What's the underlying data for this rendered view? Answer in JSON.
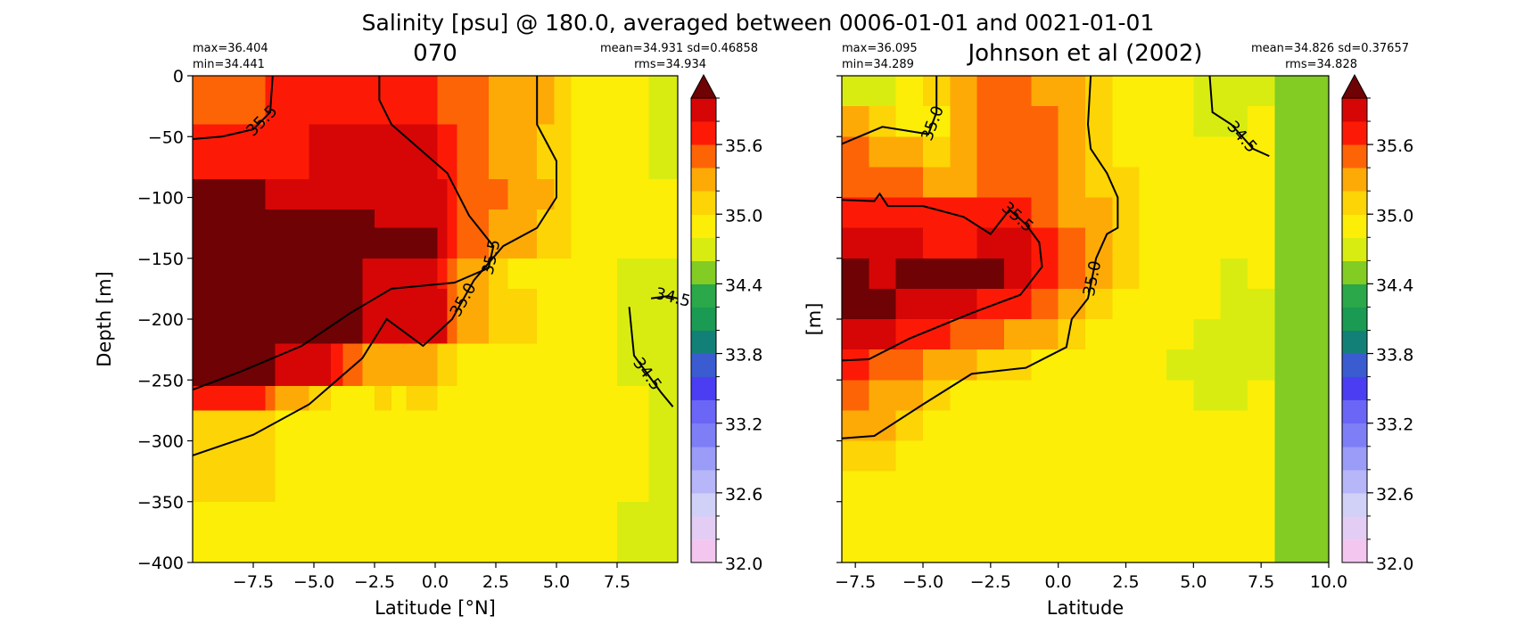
{
  "figure": {
    "suptitle": "Salinity [psu] @ 180.0, averaged between 0006-01-01 and 0021-01-01"
  },
  "colorbar": {
    "levels": [
      32.0,
      32.2,
      32.4,
      32.6,
      32.8,
      33.0,
      33.2,
      33.4,
      33.6,
      33.8,
      34.0,
      34.2,
      34.4,
      34.6,
      34.8,
      35.0,
      35.2,
      35.4,
      35.6,
      35.8,
      36.0
    ],
    "colors": [
      "#f3c6f0",
      "#e4cdf5",
      "#d1d1f8",
      "#b6b6f8",
      "#9b9bf8",
      "#7e7ef6",
      "#6b66f6",
      "#4b3ef2",
      "#3b5bd0",
      "#138078",
      "#1a9a52",
      "#2aa84a",
      "#82cc24",
      "#d9ec12",
      "#fcee06",
      "#fdd405",
      "#fdaa06",
      "#fd6406",
      "#fc1a06",
      "#d60606",
      "#a40406"
    ],
    "extend_color": "#6e0204",
    "tick_labels": [
      "32.0",
      "32.6",
      "33.2",
      "33.8",
      "34.4",
      "35.0",
      "35.6"
    ],
    "tick_values": [
      32.0,
      32.6,
      33.2,
      33.8,
      34.4,
      35.0,
      35.6
    ]
  },
  "chart_data": [
    {
      "type": "heatmap",
      "title": "070",
      "xlabel": "Latitude [°N]",
      "ylabel": "Depth [m]",
      "stats_left": [
        "max=36.404",
        "min=34.441"
      ],
      "stats_right": [
        "mean=34.931 sd=0.46858",
        "rms=34.934"
      ],
      "xlim": [
        -10,
        10
      ],
      "ylim": [
        -400,
        0
      ],
      "x_tick_values": [
        -7.5,
        -5.0,
        -2.5,
        0.0,
        2.5,
        5.0,
        7.5
      ],
      "x_tick_labels": [
        "−7.5",
        "−5.0",
        "−2.5",
        "0.0",
        "2.5",
        "5.0",
        "7.5"
      ],
      "y_tick_values": [
        0,
        -50,
        -100,
        -150,
        -200,
        -250,
        -300,
        -350,
        -400
      ],
      "y_tick_labels": [
        "0",
        "−50",
        "−100",
        "−150",
        "−200",
        "−250",
        "−300",
        "−350",
        "−400"
      ],
      "x_edges": [
        -10,
        -8.4,
        -7.0,
        -6.6,
        -5.2,
        -4.3,
        -3.8,
        -3.0,
        -2.5,
        -1.8,
        -1.2,
        -0.5,
        0.1,
        0.5,
        0.9,
        1.2,
        2.2,
        3.0,
        4.2,
        4.9,
        5.6,
        7.5,
        8.8,
        10
      ],
      "y_edges": [
        0,
        -40,
        -85,
        -110,
        -125,
        -150,
        -175,
        -220,
        -255,
        -275,
        -350,
        -400
      ],
      "values": [
        [
          35.5,
          35.5,
          35.7,
          35.7,
          35.7,
          35.7,
          35.7,
          35.7,
          35.7,
          35.7,
          35.7,
          35.7,
          35.5,
          35.5,
          35.5,
          35.5,
          35.3,
          35.3,
          35.3,
          35.1,
          34.9,
          34.9,
          34.7
        ],
        [
          35.7,
          35.7,
          35.7,
          35.7,
          35.9,
          35.9,
          35.9,
          35.9,
          35.9,
          35.9,
          35.9,
          35.9,
          35.7,
          35.7,
          35.5,
          35.5,
          35.3,
          35.3,
          35.1,
          35.1,
          34.9,
          34.9,
          34.7
        ],
        [
          36.1,
          36.1,
          35.9,
          35.9,
          35.9,
          35.9,
          35.9,
          35.9,
          35.9,
          35.9,
          35.9,
          35.9,
          35.9,
          35.7,
          35.5,
          35.5,
          35.5,
          35.3,
          35.3,
          35.1,
          34.9,
          34.9,
          34.9
        ],
        [
          36.1,
          36.1,
          36.1,
          36.1,
          36.1,
          36.1,
          36.1,
          36.1,
          35.9,
          35.9,
          35.9,
          35.9,
          35.9,
          35.7,
          35.5,
          35.5,
          35.3,
          35.3,
          35.1,
          35.1,
          34.9,
          34.9,
          34.9
        ],
        [
          36.1,
          36.1,
          36.1,
          36.1,
          36.1,
          36.1,
          36.1,
          36.1,
          36.1,
          36.1,
          36.1,
          36.1,
          35.9,
          35.7,
          35.5,
          35.5,
          35.3,
          35.3,
          35.1,
          35.1,
          34.9,
          34.9,
          34.9
        ],
        [
          36.1,
          36.1,
          36.1,
          36.1,
          36.1,
          36.1,
          36.1,
          35.9,
          35.9,
          35.9,
          35.9,
          35.9,
          35.7,
          35.5,
          35.3,
          35.3,
          35.1,
          34.9,
          34.9,
          34.9,
          34.9,
          34.7,
          34.7
        ],
        [
          36.1,
          36.1,
          36.1,
          36.1,
          36.1,
          36.1,
          36.1,
          35.9,
          35.9,
          35.9,
          35.9,
          35.9,
          35.9,
          35.5,
          35.3,
          35.3,
          35.1,
          35.1,
          34.9,
          34.9,
          34.9,
          34.7,
          34.7
        ],
        [
          36.1,
          36.1,
          36.1,
          35.9,
          35.9,
          35.7,
          35.5,
          35.3,
          35.3,
          35.3,
          35.3,
          35.3,
          35.1,
          35.1,
          34.9,
          34.9,
          34.9,
          34.9,
          34.9,
          34.9,
          34.9,
          34.7,
          34.7
        ],
        [
          35.7,
          35.7,
          35.5,
          35.3,
          35.1,
          34.9,
          34.9,
          34.9,
          35.1,
          34.9,
          35.1,
          35.1,
          34.9,
          34.9,
          34.9,
          34.9,
          34.9,
          34.9,
          34.9,
          34.9,
          34.9,
          34.9,
          34.7
        ],
        [
          35.1,
          35.1,
          35.1,
          34.9,
          34.9,
          34.9,
          34.9,
          34.9,
          34.9,
          34.9,
          34.9,
          34.9,
          34.9,
          34.9,
          34.9,
          34.9,
          34.9,
          34.9,
          34.9,
          34.9,
          34.9,
          34.9,
          34.7
        ],
        [
          34.9,
          34.9,
          34.9,
          34.9,
          34.9,
          34.9,
          34.9,
          34.9,
          34.9,
          34.9,
          34.9,
          34.9,
          34.9,
          34.9,
          34.9,
          34.9,
          34.9,
          34.9,
          34.9,
          34.9,
          34.9,
          34.7,
          34.7
        ]
      ],
      "contours": [
        {
          "label": "35.5",
          "points": [
            [
              -10,
              -52
            ],
            [
              -8.8,
              -50
            ],
            [
              -7.5,
              -44
            ],
            [
              -6.8,
              -30
            ],
            [
              -6.7,
              0
            ]
          ]
        },
        {
          "label": "35.5",
          "points": [
            [
              -10,
              -258
            ],
            [
              -8,
              -243
            ],
            [
              -5.5,
              -222
            ],
            [
              -3.5,
              -195
            ],
            [
              -1.8,
              -175
            ],
            [
              0.8,
              -170
            ],
            [
              2.2,
              -158
            ],
            [
              2.4,
              -140
            ],
            [
              1.4,
              -115
            ],
            [
              0.5,
              -80
            ],
            [
              -1.8,
              -40
            ],
            [
              -2.3,
              -20
            ],
            [
              -2.3,
              0
            ]
          ]
        },
        {
          "label": "35.0",
          "points": [
            [
              -10,
              -312
            ],
            [
              -7.5,
              -295
            ],
            [
              -5.2,
              -270
            ],
            [
              -3,
              -232
            ],
            [
              -2,
              -200
            ],
            [
              -0.5,
              -222
            ],
            [
              0.7,
              -200
            ],
            [
              1.6,
              -168
            ],
            [
              2.8,
              -140
            ],
            [
              4.2,
              -125
            ],
            [
              5.0,
              -100
            ],
            [
              5.0,
              -70
            ],
            [
              4.2,
              -40
            ],
            [
              4.2,
              0
            ]
          ]
        },
        {
          "label": "34.5",
          "points": [
            [
              8.9,
              -183
            ],
            [
              9.6,
              -181
            ],
            [
              10,
              -183
            ]
          ]
        },
        {
          "label": "34.5",
          "points": [
            [
              8.0,
              -190
            ],
            [
              8.2,
              -230
            ],
            [
              9.3,
              -260
            ],
            [
              9.8,
              -272
            ]
          ]
        }
      ]
    },
    {
      "type": "heatmap",
      "title": "Johnson et al (2002)",
      "xlabel": "Latitude",
      "ylabel": "[m]",
      "stats_left": [
        "max=36.095",
        "min=34.289"
      ],
      "stats_right": [
        "mean=34.826 sd=0.37657",
        "rms=34.828"
      ],
      "xlim": [
        -8.0,
        10.0
      ],
      "ylim": [
        -400,
        0
      ],
      "x_tick_values": [
        -7.5,
        -5.0,
        -2.5,
        0.0,
        2.5,
        5.0,
        7.5,
        10.0
      ],
      "x_tick_labels": [
        "−7.5",
        "−5.0",
        "−2.5",
        "0.0",
        "2.5",
        "5.0",
        "7.5",
        "10.0"
      ],
      "y_tick_values": [
        0,
        -50,
        -100,
        -150,
        -200,
        -250,
        -300,
        -350,
        -400
      ],
      "y_tick_labels": [
        "",
        "",
        "",
        "",
        "",
        "",
        "",
        "",
        ""
      ],
      "x_edges": [
        -8.0,
        -7.0,
        -6.0,
        -5.0,
        -4.0,
        -3.0,
        -2.0,
        -1.0,
        0.0,
        1.0,
        2.0,
        3.0,
        4.0,
        5.0,
        6.0,
        7.0,
        8.0,
        10.0
      ],
      "y_edges": [
        0,
        -25,
        -50,
        -75,
        -100,
        -125,
        -150,
        -175,
        -200,
        -225,
        -250,
        -275,
        -300,
        -325,
        -350,
        -375,
        -400
      ],
      "values": [
        [
          34.7,
          34.7,
          34.9,
          35.1,
          35.3,
          35.5,
          35.5,
          35.3,
          35.3,
          35.1,
          34.9,
          34.9,
          34.9,
          34.7,
          34.7,
          34.7,
          34.5
        ],
        [
          35.3,
          35.1,
          34.9,
          34.9,
          35.3,
          35.5,
          35.5,
          35.5,
          35.3,
          35.1,
          34.9,
          34.9,
          34.9,
          34.7,
          34.7,
          34.9,
          34.5
        ],
        [
          35.5,
          35.3,
          35.3,
          35.1,
          35.3,
          35.5,
          35.5,
          35.5,
          35.3,
          35.1,
          34.9,
          34.9,
          34.9,
          34.9,
          34.9,
          34.9,
          34.5
        ],
        [
          35.5,
          35.5,
          35.5,
          35.3,
          35.3,
          35.5,
          35.5,
          35.5,
          35.3,
          35.1,
          35.1,
          34.9,
          34.9,
          34.9,
          34.9,
          34.9,
          34.5
        ],
        [
          35.7,
          35.7,
          35.7,
          35.7,
          35.7,
          35.7,
          35.7,
          35.5,
          35.3,
          35.3,
          35.1,
          34.9,
          34.9,
          34.9,
          34.9,
          34.9,
          34.5
        ],
        [
          35.9,
          35.9,
          35.9,
          35.7,
          35.7,
          35.9,
          35.9,
          35.7,
          35.5,
          35.3,
          35.1,
          34.9,
          34.9,
          34.9,
          34.9,
          34.9,
          34.5
        ],
        [
          36.1,
          35.9,
          36.1,
          36.1,
          36.1,
          36.1,
          35.9,
          35.7,
          35.5,
          35.3,
          35.1,
          34.9,
          34.9,
          34.9,
          34.7,
          34.9,
          34.5
        ],
        [
          36.1,
          36.1,
          35.9,
          35.9,
          35.9,
          35.7,
          35.7,
          35.5,
          35.3,
          35.1,
          34.9,
          34.9,
          34.9,
          34.9,
          34.7,
          34.7,
          34.5
        ],
        [
          35.9,
          35.9,
          35.7,
          35.7,
          35.5,
          35.5,
          35.3,
          35.3,
          35.1,
          34.9,
          34.9,
          34.9,
          34.9,
          34.7,
          34.7,
          34.7,
          34.5
        ],
        [
          35.7,
          35.5,
          35.5,
          35.3,
          35.3,
          35.1,
          35.1,
          34.9,
          34.9,
          34.9,
          34.9,
          34.9,
          34.7,
          34.7,
          34.7,
          34.7,
          34.5
        ],
        [
          35.5,
          35.3,
          35.3,
          35.1,
          34.9,
          34.9,
          34.9,
          34.9,
          34.9,
          34.9,
          34.9,
          34.9,
          34.9,
          34.7,
          34.7,
          34.9,
          34.5
        ],
        [
          35.3,
          35.3,
          35.1,
          34.9,
          34.9,
          34.9,
          34.9,
          34.9,
          34.9,
          34.9,
          34.9,
          34.9,
          34.9,
          34.9,
          34.9,
          34.9,
          34.5
        ],
        [
          35.1,
          35.1,
          34.9,
          34.9,
          34.9,
          34.9,
          34.9,
          34.9,
          34.9,
          34.9,
          34.9,
          34.9,
          34.9,
          34.9,
          34.9,
          34.9,
          34.5
        ],
        [
          34.9,
          34.9,
          34.9,
          34.9,
          34.9,
          34.9,
          34.9,
          34.9,
          34.9,
          34.9,
          34.9,
          34.9,
          34.9,
          34.9,
          34.9,
          34.9,
          34.5
        ],
        [
          34.9,
          34.9,
          34.9,
          34.9,
          34.9,
          34.9,
          34.9,
          34.9,
          34.9,
          34.9,
          34.9,
          34.9,
          34.9,
          34.9,
          34.9,
          34.9,
          34.5
        ],
        [
          34.9,
          34.9,
          34.9,
          34.9,
          34.9,
          34.9,
          34.9,
          34.9,
          34.9,
          34.9,
          34.9,
          34.9,
          34.9,
          34.9,
          34.9,
          34.9,
          34.5
        ]
      ],
      "contours": [
        {
          "label": "35.0",
          "points": [
            [
              -8.0,
              -56
            ],
            [
              -6.5,
              -42
            ],
            [
              -4.8,
              -48
            ],
            [
              -4.5,
              -30
            ],
            [
              -4.5,
              0
            ]
          ]
        },
        {
          "label": "35.5",
          "points": [
            [
              -8.0,
              -102
            ],
            [
              -6.8,
              -103
            ],
            [
              -6.6,
              -97
            ],
            [
              -6.3,
              -107
            ],
            [
              -5,
              -107
            ],
            [
              -3.5,
              -116
            ],
            [
              -2.5,
              -130
            ],
            [
              -1.8,
              -110
            ],
            [
              -1.2,
              -122
            ],
            [
              -0.7,
              -137
            ],
            [
              -0.6,
              -157
            ],
            [
              -1.4,
              -180
            ],
            [
              -3.2,
              -195
            ],
            [
              -5.5,
              -216
            ],
            [
              -7,
              -233
            ],
            [
              -8.0,
              -234
            ]
          ]
        },
        {
          "label": "35.0",
          "points": [
            [
              -8.0,
              -298
            ],
            [
              -6.8,
              -296
            ],
            [
              -5,
              -270
            ],
            [
              -3.2,
              -245
            ],
            [
              -1.2,
              -240
            ],
            [
              0.3,
              -223
            ],
            [
              0.5,
              -200
            ],
            [
              1.1,
              -183
            ],
            [
              1.4,
              -150
            ],
            [
              1.8,
              -130
            ],
            [
              2.2,
              -125
            ],
            [
              2.2,
              -100
            ],
            [
              1.8,
              -80
            ],
            [
              1.2,
              -60
            ],
            [
              1.1,
              -40
            ],
            [
              1.2,
              0
            ]
          ]
        },
        {
          "label": "34.5",
          "points": [
            [
              5.6,
              0
            ],
            [
              5.7,
              -30
            ],
            [
              6.4,
              -40
            ],
            [
              7.2,
              -60
            ],
            [
              7.8,
              -66
            ]
          ]
        }
      ]
    }
  ]
}
